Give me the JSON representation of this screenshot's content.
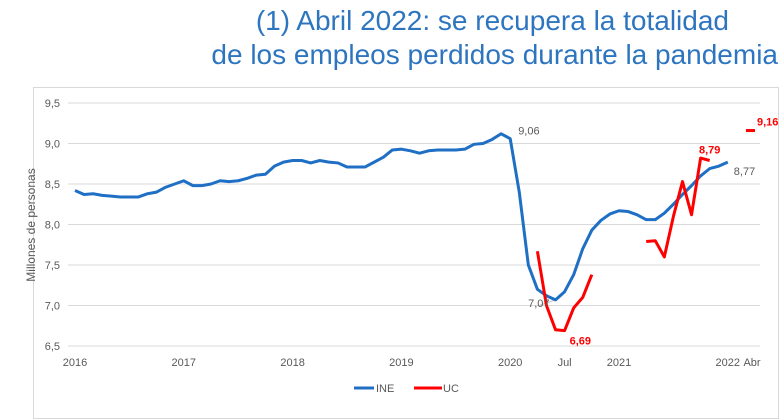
{
  "title_line1": "(1) Abril 2022: se recupera la totalidad",
  "title_line2": "de los empleos perdidos durante la pandemia",
  "chart_data": {
    "type": "line",
    "title": "(1) Abril 2022: se recupera la totalidad de los empleos perdidos durante la pandemia",
    "ylabel": "Millones de personas",
    "xlabel": "",
    "ylim": [
      6.5,
      9.5
    ],
    "yticks": [
      "9,5",
      "9,0",
      "8,5",
      "8,0",
      "7,5",
      "7,0",
      "6,5"
    ],
    "ytick_values": [
      9.5,
      9.0,
      8.5,
      8.0,
      7.5,
      7.0,
      6.5
    ],
    "x_unit": "months since Jan 2016",
    "xlim": [
      0,
      75
    ],
    "xticks": [
      {
        "label": "2016",
        "x": 0
      },
      {
        "label": "2017",
        "x": 12
      },
      {
        "label": "2018",
        "x": 24
      },
      {
        "label": "2019",
        "x": 36
      },
      {
        "label": "2020",
        "x": 48
      },
      {
        "label": "Jul",
        "x": 54
      },
      {
        "label": "2021",
        "x": 60
      },
      {
        "label": "2022",
        "x": 72
      },
      {
        "label": "Abr",
        "x": 75
      }
    ],
    "grid": true,
    "legend": "bottom",
    "series": [
      {
        "name": "INE",
        "color": "#1f6fc5",
        "start": 0,
        "values": [
          8.42,
          8.37,
          8.38,
          8.36,
          8.35,
          8.34,
          8.34,
          8.34,
          8.38,
          8.4,
          8.46,
          8.5,
          8.54,
          8.48,
          8.48,
          8.5,
          8.54,
          8.53,
          8.54,
          8.57,
          8.61,
          8.62,
          8.72,
          8.77,
          8.79,
          8.79,
          8.76,
          8.79,
          8.77,
          8.76,
          8.71,
          8.71,
          8.71,
          8.77,
          8.83,
          8.92,
          8.93,
          8.91,
          8.88,
          8.91,
          8.92,
          8.92,
          8.92,
          8.93,
          8.99,
          9.0,
          9.05,
          9.12,
          9.06,
          8.4,
          7.5,
          7.2,
          7.12,
          7.07,
          7.17,
          7.38,
          7.7,
          7.93,
          8.05,
          8.13,
          8.17,
          8.16,
          8.12,
          8.06,
          8.06,
          8.14,
          8.25,
          8.37,
          8.48,
          8.6,
          8.69,
          8.72,
          8.77
        ]
      },
      {
        "name": "UC",
        "color": "#ff0000",
        "segments": [
          {
            "start": 51,
            "values": [
              7.67,
              7.0,
              6.7,
              6.69,
              6.97,
              7.1,
              7.38
            ]
          },
          {
            "start": 63,
            "values": [
              7.79,
              7.8,
              7.6,
              8.1,
              8.53,
              8.12,
              8.82,
              8.79
            ]
          },
          {
            "start": 74,
            "values": [
              9.16,
              9.16
            ]
          }
        ]
      }
    ],
    "annotations": [
      {
        "text": "9,06",
        "series": "INE",
        "x": 48,
        "y": 9.06
      },
      {
        "text": "7,07",
        "series": "INE",
        "x": 53,
        "y": 7.07
      },
      {
        "text": "8,77",
        "series": "INE",
        "x": 72,
        "y": 8.77
      },
      {
        "text": "6,69",
        "series": "UC",
        "x": 54,
        "y": 6.69
      },
      {
        "text": "8,79",
        "series": "UC",
        "x": 70,
        "y": 8.79
      },
      {
        "text": "9,16",
        "series": "UC",
        "x": 75,
        "y": 9.16
      }
    ]
  }
}
